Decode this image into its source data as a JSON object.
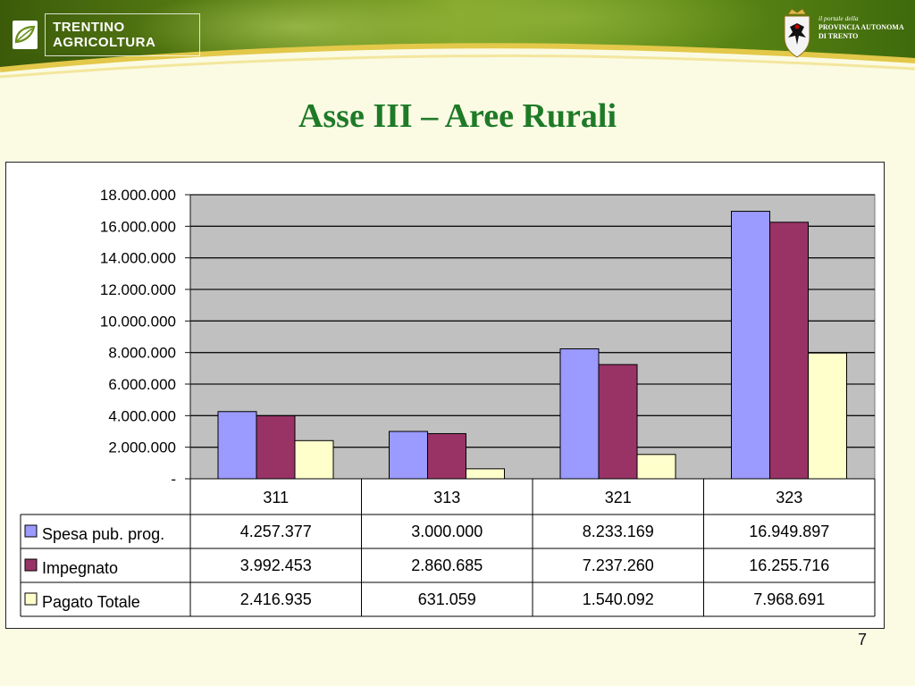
{
  "header": {
    "brand_logo_text": "TRENTINO AGRICOLTURA",
    "portal_line1": "il portale della",
    "portal_line2": "PROVINCIA AUTONOMA",
    "portal_line3": "DI TRENTO"
  },
  "slide": {
    "title": "Asse III – Aree Rurali",
    "page_number": "7"
  },
  "chart_data": {
    "type": "bar",
    "categories": [
      "311",
      "313",
      "321",
      "323"
    ],
    "series": [
      {
        "name": "Spesa pub. prog.",
        "color": "#9a9aff",
        "values": [
          4257377,
          3000000,
          8233169,
          16949897
        ],
        "labels": [
          "4.257.377",
          "3.000.000",
          "8.233.169",
          "16.949.897"
        ]
      },
      {
        "name": "Impegnato",
        "color": "#993366",
        "values": [
          3992453,
          2860685,
          7237260,
          16255716
        ],
        "labels": [
          "3.992.453",
          "2.860.685",
          "7.237.260",
          "16.255.716"
        ]
      },
      {
        "name": "Pagato Totale",
        "color": "#ffffcc",
        "values": [
          2416935,
          631059,
          1540092,
          7968691
        ],
        "labels": [
          "2.416.935",
          "631.059",
          "1.540.092",
          "7.968.691"
        ]
      }
    ],
    "ylim": [
      0,
      18000000
    ],
    "yticks": [
      0,
      2000000,
      4000000,
      6000000,
      8000000,
      10000000,
      12000000,
      14000000,
      16000000,
      18000000
    ],
    "ytick_labels": [
      "-",
      "2.000.000",
      "4.000.000",
      "6.000.000",
      "8.000.000",
      "10.000.000",
      "12.000.000",
      "14.000.000",
      "16.000.000",
      "18.000.000"
    ],
    "grid": true,
    "plot_background": "#c0c0c0",
    "legend": "data table below chart"
  }
}
